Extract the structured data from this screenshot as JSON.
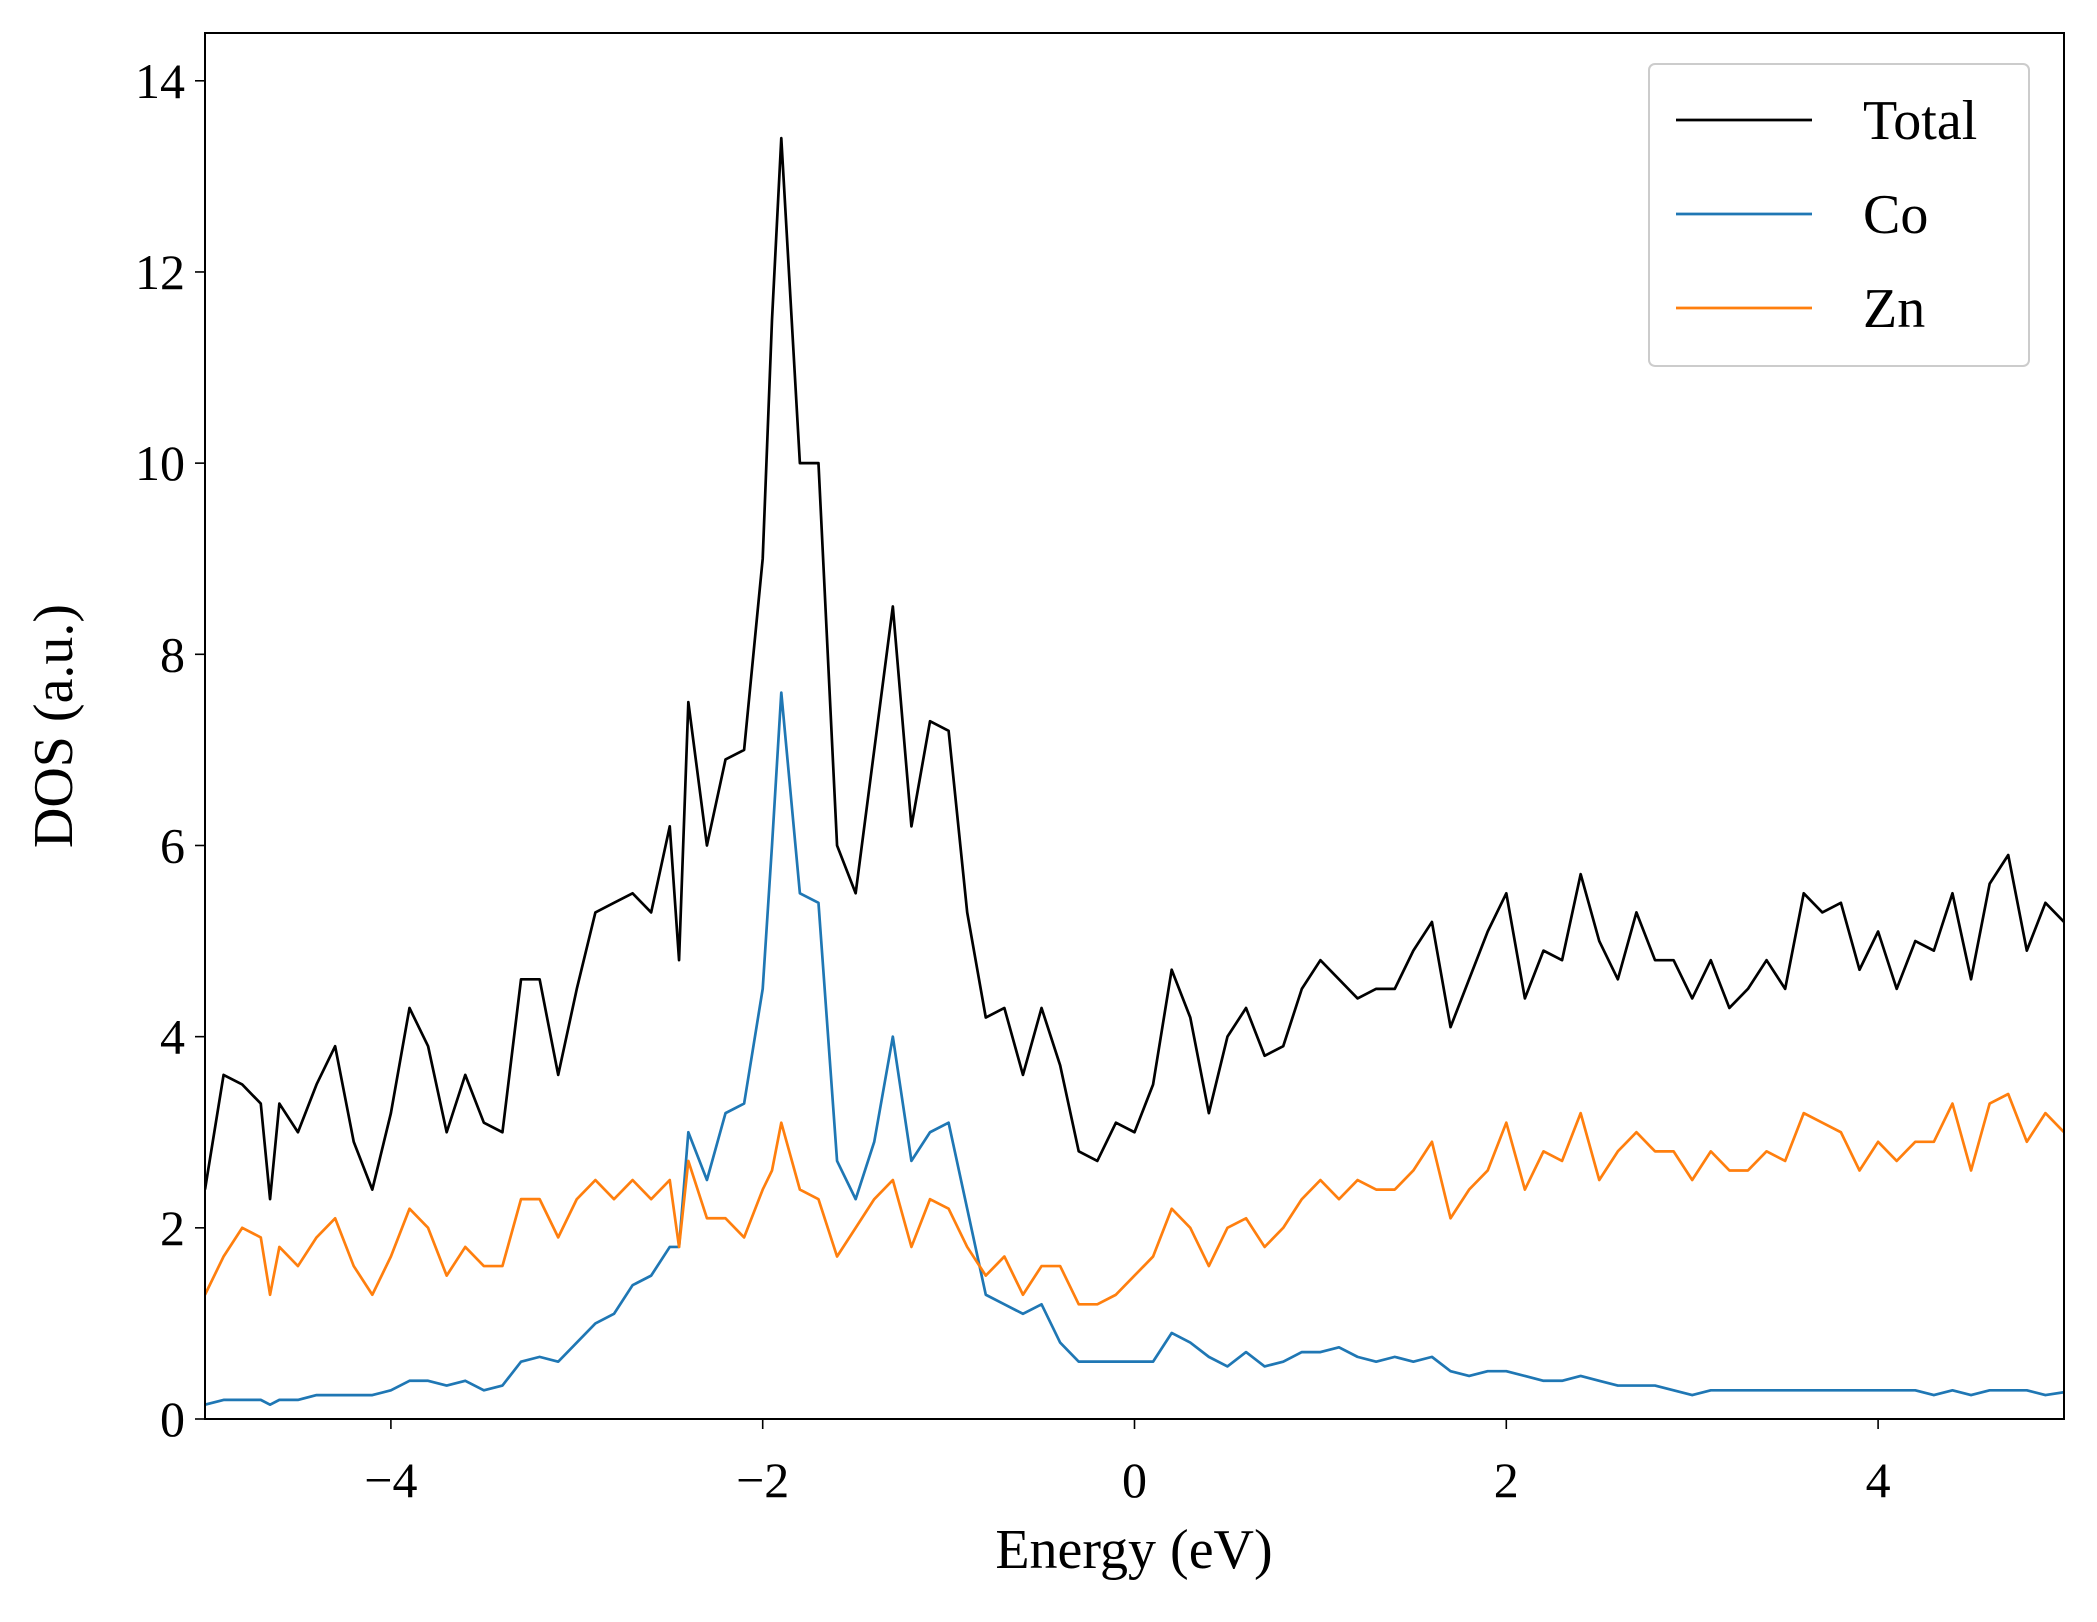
{
  "chart_data": {
    "type": "line",
    "xlabel": "Energy (eV)",
    "ylabel": "DOS (a.u.)",
    "x": [
      -5,
      -4.9,
      -4.8,
      -4.7,
      -4.65,
      -4.6,
      -4.5,
      -4.4,
      -4.3,
      -4.2,
      -4.1,
      -4,
      -3.9,
      -3.8,
      -3.7,
      -3.6,
      -3.5,
      -3.4,
      -3.3,
      -3.2,
      -3.1,
      -3,
      -2.9,
      -2.8,
      -2.7,
      -2.6,
      -2.5,
      -2.45,
      -2.4,
      -2.3,
      -2.2,
      -2.1,
      -2,
      -1.95,
      -1.9,
      -1.8,
      -1.7,
      -1.6,
      -1.5,
      -1.4,
      -1.3,
      -1.2,
      -1.1,
      -1,
      -0.9,
      -0.8,
      -0.7,
      -0.6,
      -0.5,
      -0.4,
      -0.3,
      -0.2,
      -0.1,
      0,
      0.1,
      0.2,
      0.3,
      0.4,
      0.5,
      0.6,
      0.7,
      0.8,
      0.9,
      1,
      1.1,
      1.2,
      1.3,
      1.4,
      1.5,
      1.6,
      1.7,
      1.8,
      1.9,
      2,
      2.1,
      2.2,
      2.3,
      2.4,
      2.5,
      2.6,
      2.7,
      2.8,
      2.9,
      3,
      3.1,
      3.2,
      3.3,
      3.4,
      3.5,
      3.6,
      3.7,
      3.8,
      3.9,
      4,
      4.1,
      4.2,
      4.3,
      4.4,
      4.5,
      4.6,
      4.7,
      4.8,
      4.9,
      5
    ],
    "series": [
      {
        "name": "Total",
        "color": "#000000",
        "values": [
          2.4,
          3.6,
          3.5,
          3.3,
          2.3,
          3.3,
          3.0,
          3.5,
          3.9,
          2.9,
          2.4,
          3.2,
          4.3,
          3.9,
          3.0,
          3.6,
          3.1,
          3.0,
          4.6,
          4.6,
          3.6,
          4.5,
          5.3,
          5.4,
          5.5,
          5.3,
          6.2,
          4.8,
          7.5,
          6.0,
          6.9,
          7.0,
          9.0,
          11.5,
          13.4,
          10.0,
          10.0,
          6.0,
          5.5,
          7.0,
          8.5,
          6.2,
          7.3,
          7.2,
          5.3,
          4.2,
          4.3,
          3.6,
          4.3,
          3.7,
          2.8,
          2.7,
          3.1,
          3.0,
          3.5,
          4.7,
          4.2,
          3.2,
          4.0,
          4.3,
          3.8,
          3.9,
          4.5,
          4.8,
          4.6,
          4.4,
          4.5,
          4.5,
          4.9,
          5.2,
          4.1,
          4.6,
          5.1,
          5.5,
          4.4,
          4.9,
          4.8,
          5.7,
          5.0,
          4.6,
          5.3,
          4.8,
          4.8,
          4.4,
          4.8,
          4.3,
          4.5,
          4.8,
          4.5,
          5.5,
          5.3,
          5.4,
          4.7,
          5.1,
          4.5,
          5.0,
          4.9,
          5.5,
          4.6,
          5.6,
          5.9,
          4.9,
          5.4,
          5.2
        ]
      },
      {
        "name": "Co",
        "color": "#1f77b4",
        "values": [
          0.15,
          0.2,
          0.2,
          0.2,
          0.15,
          0.2,
          0.2,
          0.25,
          0.25,
          0.25,
          0.25,
          0.3,
          0.4,
          0.4,
          0.35,
          0.4,
          0.3,
          0.35,
          0.6,
          0.65,
          0.6,
          0.8,
          1.0,
          1.1,
          1.4,
          1.5,
          1.8,
          1.8,
          3.0,
          2.5,
          3.2,
          3.3,
          4.5,
          6.0,
          7.6,
          5.5,
          5.4,
          2.7,
          2.3,
          2.9,
          4.0,
          2.7,
          3.0,
          3.1,
          2.2,
          1.3,
          1.2,
          1.1,
          1.2,
          0.8,
          0.6,
          0.6,
          0.6,
          0.6,
          0.6,
          0.9,
          0.8,
          0.65,
          0.55,
          0.7,
          0.55,
          0.6,
          0.7,
          0.7,
          0.75,
          0.65,
          0.6,
          0.65,
          0.6,
          0.65,
          0.5,
          0.45,
          0.5,
          0.5,
          0.45,
          0.4,
          0.4,
          0.45,
          0.4,
          0.35,
          0.35,
          0.35,
          0.3,
          0.25,
          0.3,
          0.3,
          0.3,
          0.3,
          0.3,
          0.3,
          0.3,
          0.3,
          0.3,
          0.3,
          0.3,
          0.3,
          0.25,
          0.3,
          0.25,
          0.3,
          0.3,
          0.3,
          0.25,
          0.28
        ]
      },
      {
        "name": "Zn",
        "color": "#ff7f0e",
        "values": [
          1.3,
          1.7,
          2.0,
          1.9,
          1.3,
          1.8,
          1.6,
          1.9,
          2.1,
          1.6,
          1.3,
          1.7,
          2.2,
          2.0,
          1.5,
          1.8,
          1.6,
          1.6,
          2.3,
          2.3,
          1.9,
          2.3,
          2.5,
          2.3,
          2.5,
          2.3,
          2.5,
          1.8,
          2.7,
          2.1,
          2.1,
          1.9,
          2.4,
          2.6,
          3.1,
          2.4,
          2.3,
          1.7,
          2.0,
          2.3,
          2.5,
          1.8,
          2.3,
          2.2,
          1.8,
          1.5,
          1.7,
          1.3,
          1.6,
          1.6,
          1.2,
          1.2,
          1.3,
          1.5,
          1.7,
          2.2,
          2.0,
          1.6,
          2.0,
          2.1,
          1.8,
          2.0,
          2.3,
          2.5,
          2.3,
          2.5,
          2.4,
          2.4,
          2.6,
          2.9,
          2.1,
          2.4,
          2.6,
          3.1,
          2.4,
          2.8,
          2.7,
          3.2,
          2.5,
          2.8,
          3.0,
          2.8,
          2.8,
          2.5,
          2.8,
          2.6,
          2.6,
          2.8,
          2.7,
          3.2,
          3.1,
          3.0,
          2.6,
          2.9,
          2.7,
          2.9,
          2.9,
          3.3,
          2.6,
          3.3,
          3.4,
          2.9,
          3.2,
          3.0
        ]
      }
    ],
    "xlim": [
      -5,
      5
    ],
    "xticks": [
      {
        "value": -4,
        "label": "−4"
      },
      {
        "value": -2,
        "label": "−2"
      },
      0,
      2,
      4
    ],
    "ylim": [
      0,
      14.5
    ],
    "yticks": [
      0,
      2,
      4,
      6,
      8,
      10,
      12,
      14
    ],
    "grid": false,
    "legend": "upper right"
  }
}
